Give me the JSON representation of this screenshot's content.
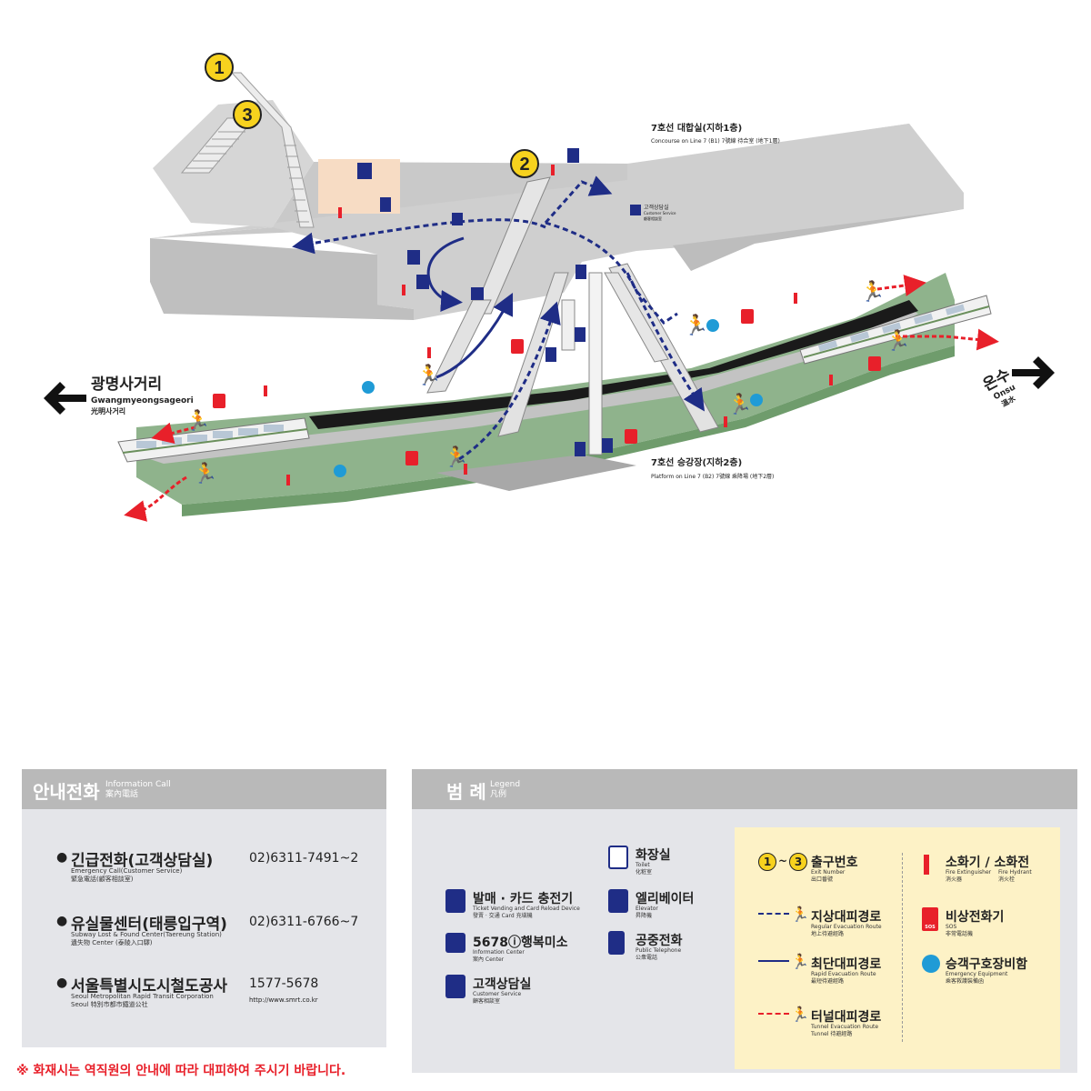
{
  "map": {
    "exits": [
      "1",
      "3",
      "2"
    ],
    "concourse_title": "7호선 대합실(지하1층)",
    "concourse_sub": "Concourse on Line 7 (B1) 7號線 待合室 (地下1層)",
    "platform_title": "7호선 승강장(지하2층)",
    "platform_sub": "Platform on Line 7 (B2) 7號線 乘降場 (地下2層)",
    "west_ko": "광명사거리",
    "west_en": "Gwangmyeongsageori",
    "west_cn": "光明사거리",
    "east_ko": "온수",
    "east_en": "Onsu",
    "east_cn": "溫水",
    "customer_service_ko": "고객상담실",
    "customer_service_en": "Customer Service",
    "customer_service_cn": "顧客相談室"
  },
  "info_call": {
    "title": "안내전화",
    "sub_en": "Information Call",
    "sub_cn": "案內電話",
    "items": [
      {
        "title": "긴급전화(고객상담실)",
        "sub1": "Emergency Call(Customer Service)",
        "sub2": "緊急電話(顧客相談室)",
        "number": "02)6311-7491~2",
        "url": ""
      },
      {
        "title": "유실물센터(태릉입구역)",
        "sub1": "Subway Lost & Found Center(Taereung Station)",
        "sub2": "遺失物 Center (泰陵入口驛)",
        "number": "02)6311-6766~7",
        "url": ""
      },
      {
        "title": "서울특별시도시철도공사",
        "sub1": "Seoul Metropolitan Rapid Transit Corporation",
        "sub2": "Seoul 特別市都市鐵道公社",
        "number": "1577-5678",
        "url": "http://www.smrt.co.kr"
      }
    ],
    "bullet": "●"
  },
  "legend": {
    "title": "범 례",
    "sub_en": "Legend",
    "sub_cn": "凡例",
    "col1": [
      {
        "title": "발매 · 카드 충전기",
        "sub1": "Ticket Vending and Card Reload Device",
        "sub2": "發賣 · 交通 Card 充塡機",
        "icon": "ticket-machine-icon"
      },
      {
        "title": "5678ⓘ행복미소",
        "sub1": "Information Center",
        "sub2": "案內 Center",
        "icon": "information-icon"
      },
      {
        "title": "고객상담실",
        "sub1": "Customer Service",
        "sub2": "顧客相談室",
        "icon": "customer-service-icon"
      }
    ],
    "col2": [
      {
        "title": "화장실",
        "sub1": "Toilet",
        "sub2": "化粧室",
        "icon": "toilet-icon"
      },
      {
        "title": "엘리베이터",
        "sub1": "Elevator",
        "sub2": "昇降機",
        "icon": "elevator-icon"
      },
      {
        "title": "공중전화",
        "sub1": "Public Telephone",
        "sub2": "公衆電話",
        "icon": "telephone-icon"
      }
    ],
    "exit_range": {
      "from": "1",
      "sep": "~",
      "to": "3",
      "title": "출구번호",
      "sub1": "Exit Number",
      "sub2": "出口番號"
    },
    "routes": [
      {
        "title": "지상대피경로",
        "sub1": "Regular Evacuation Route",
        "sub2": "地上待避經路",
        "color": "#1f2d86"
      },
      {
        "title": "최단대피경로",
        "sub1": "Rapid Evacuation Route",
        "sub2": "最短待避經路",
        "color": "#1f2d86"
      },
      {
        "title": "터널대피경로",
        "sub1": "Tunnel Evacuation Route",
        "sub2": "Tunnel 待避經路",
        "color": "#e8202a"
      }
    ],
    "fire": {
      "title": "소화기 / 소화전",
      "sub1a": "Fire Extinguisher",
      "sub2a": "消火器",
      "sub1b": "Fire Hydrant",
      "sub2b": "消火栓"
    },
    "sos": {
      "title": "비상전화기",
      "sub1": "SOS",
      "sub2": "非常電話機",
      "badge": "SOS"
    },
    "equipment": {
      "title": "승객구호장비함",
      "sub1": "Emergency Equipment",
      "sub2": "乘客救護裝備函"
    }
  },
  "note": "※ 화재시는 역직원의 안내에 따라 대피하여 주시기 바랍니다.",
  "colors": {
    "navy": "#1f2d86",
    "red": "#e8202a",
    "yellow": "#f7d21e",
    "green": "#8fb38c",
    "gray": "#c6c6c6"
  }
}
